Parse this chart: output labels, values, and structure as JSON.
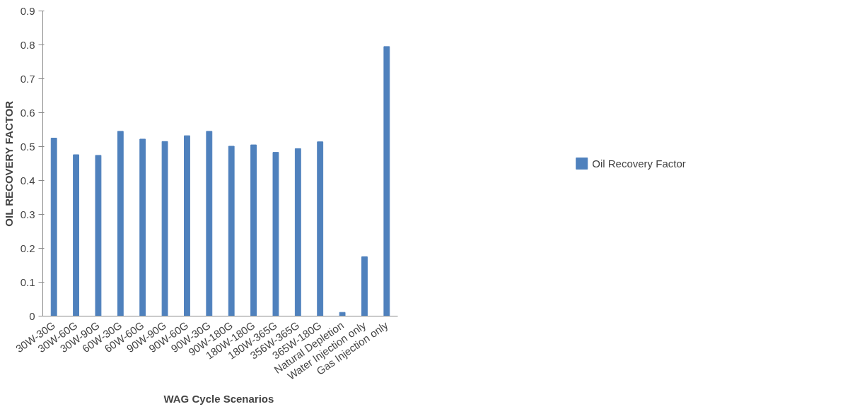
{
  "chart_data": {
    "type": "bar",
    "xlabel": "WAG Cycle  Scenarios",
    "ylabel": "OIL RECOVERY FACTOR",
    "categories": [
      "30W-30G",
      "30W-60G",
      "30W-90G",
      "60W-30G",
      "60W-60G",
      "90W-90G",
      "90W-60G",
      "90W-30G",
      "90W-180G",
      "180W-180G",
      "180W-365G",
      "356W-365G",
      "365W-180G",
      "Natural Depletion",
      "Water Injection only",
      "Gas Injection only"
    ],
    "series": [
      {
        "name": "Oil Recovery Factor",
        "color": "#4f81bd",
        "values": [
          0.525,
          0.476,
          0.474,
          0.545,
          0.522,
          0.515,
          0.532,
          0.545,
          0.501,
          0.505,
          0.483,
          0.494,
          0.514,
          0.011,
          0.175,
          0.795
        ]
      }
    ],
    "ylim": [
      0,
      0.9
    ],
    "yticks": [
      {
        "value": 0,
        "label": "0"
      },
      0.1,
      0.2,
      0.3,
      0.4,
      0.5,
      0.6,
      0.7,
      0.8,
      0.9
    ],
    "grid": false,
    "legend": "right"
  }
}
